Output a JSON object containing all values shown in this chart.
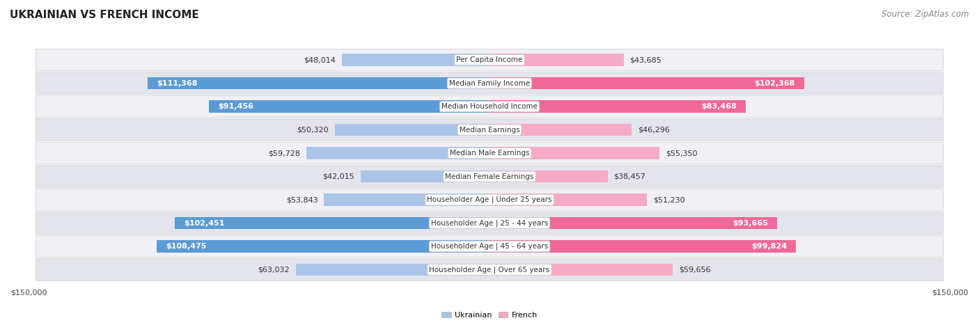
{
  "title": "UKRAINIAN VS FRENCH INCOME",
  "source": "Source: ZipAtlas.com",
  "categories": [
    "Per Capita Income",
    "Median Family Income",
    "Median Household Income",
    "Median Earnings",
    "Median Male Earnings",
    "Median Female Earnings",
    "Householder Age | Under 25 years",
    "Householder Age | 25 - 44 years",
    "Householder Age | 45 - 64 years",
    "Householder Age | Over 65 years"
  ],
  "ukrainian_values": [
    48014,
    111368,
    91456,
    50320,
    59728,
    42015,
    53843,
    102451,
    108475,
    63032
  ],
  "french_values": [
    43685,
    102368,
    83468,
    46296,
    55350,
    38457,
    51230,
    93665,
    99824,
    59656
  ],
  "ukrainian_labels": [
    "$48,014",
    "$111,368",
    "$91,456",
    "$50,320",
    "$59,728",
    "$42,015",
    "$53,843",
    "$102,451",
    "$108,475",
    "$63,032"
  ],
  "french_labels": [
    "$43,685",
    "$102,368",
    "$83,468",
    "$46,296",
    "$55,350",
    "$38,457",
    "$51,230",
    "$93,665",
    "$99,824",
    "$59,656"
  ],
  "max_val": 150000,
  "ukrainian_color_light": "#aac5e8",
  "french_color_light": "#f5aac5",
  "ukrainian_color_solid": "#5b9bd5",
  "french_color_solid": "#f06898",
  "bg_color": "#ffffff",
  "row_bg_light": "#f0f0f5",
  "row_bg_dark": "#e4e4ec",
  "label_threshold": 75000,
  "title_fontsize": 11,
  "source_fontsize": 8.5,
  "bar_label_fontsize": 8,
  "category_fontsize": 7.5,
  "axis_label_fontsize": 8
}
